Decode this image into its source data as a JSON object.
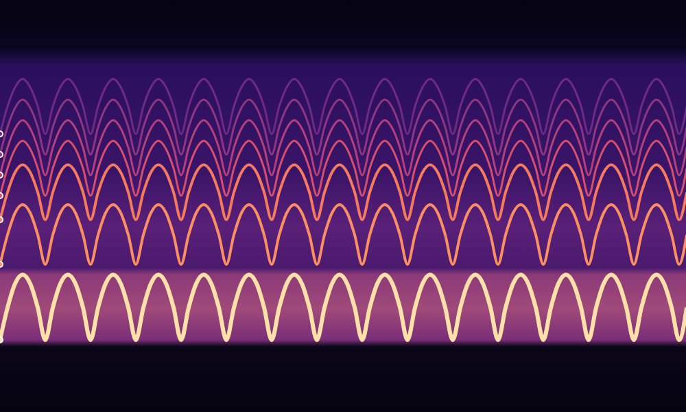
{
  "chart_data": {
    "type": "line",
    "grid": false,
    "tick_labels": false,
    "xlim": [
      0,
      1000
    ],
    "ylim": [
      0,
      600
    ],
    "x": [
      0,
      11,
      22,
      33,
      44,
      55,
      66,
      77,
      88,
      99,
      110,
      121,
      132,
      143,
      154,
      165,
      176,
      187,
      198,
      209,
      220,
      231,
      242,
      253,
      264,
      275,
      286,
      297,
      308,
      319,
      330,
      341,
      352,
      363,
      374,
      385,
      396,
      407,
      418,
      429,
      440,
      451,
      462,
      473,
      484,
      495,
      506,
      517,
      528,
      539,
      550,
      561,
      572,
      583,
      594,
      605,
      616,
      627,
      638,
      649,
      660,
      671,
      682,
      693,
      704,
      715,
      726,
      737,
      748,
      759,
      770,
      781,
      792,
      803,
      814,
      825,
      836,
      847,
      858,
      869,
      880,
      891,
      902,
      913,
      924,
      935,
      946,
      957,
      968,
      979,
      990,
      1001
    ],
    "series": [
      {
        "color": "#fee1a8",
        "values": [
          105,
          152,
          187,
          200,
          187,
          152,
          105,
          152,
          187,
          200,
          187,
          152,
          105,
          152,
          187,
          200,
          187,
          152,
          105,
          152,
          187,
          200,
          187,
          152,
          105,
          152,
          187,
          200,
          187,
          152,
          105,
          152,
          187,
          200,
          187,
          152,
          105,
          152,
          187,
          200,
          187,
          152,
          105,
          152,
          187,
          200,
          187,
          152,
          105,
          152,
          187,
          200,
          187,
          152,
          105,
          152,
          187,
          200,
          187,
          152,
          105,
          152,
          187,
          200,
          187,
          152,
          105,
          152,
          187,
          200,
          187,
          152,
          105,
          152,
          187,
          200,
          187,
          152,
          105,
          152,
          187,
          200,
          187,
          152,
          105,
          152,
          187,
          200,
          187,
          152,
          105,
          152
        ]
      },
      {
        "color": "#fb8f63",
        "values": [
          215,
          258,
          290,
          302,
          290,
          258,
          215,
          258,
          290,
          302,
          290,
          258,
          215,
          258,
          290,
          302,
          290,
          258,
          215,
          258,
          290,
          302,
          290,
          258,
          215,
          258,
          290,
          302,
          290,
          258,
          215,
          258,
          290,
          302,
          290,
          258,
          215,
          258,
          290,
          302,
          290,
          258,
          215,
          258,
          290,
          302,
          290,
          258,
          215,
          258,
          290,
          302,
          290,
          258,
          215,
          258,
          290,
          302,
          290,
          258,
          215,
          258,
          290,
          302,
          290,
          258,
          215,
          258,
          290,
          302,
          290,
          258,
          215,
          258,
          290,
          302,
          290,
          258,
          215,
          258,
          290,
          302,
          290,
          258,
          215,
          258,
          290,
          302,
          290,
          258,
          215,
          258
        ]
      },
      {
        "color": "#f57a5e",
        "values": [
          280,
          320,
          349,
          360,
          349,
          320,
          280,
          320,
          349,
          360,
          349,
          320,
          280,
          320,
          349,
          360,
          349,
          320,
          280,
          320,
          349,
          360,
          349,
          320,
          280,
          320,
          349,
          360,
          349,
          320,
          280,
          320,
          349,
          360,
          349,
          320,
          280,
          320,
          349,
          360,
          349,
          320,
          280,
          320,
          349,
          360,
          349,
          320,
          280,
          320,
          349,
          360,
          349,
          320,
          280,
          320,
          349,
          360,
          349,
          320,
          280,
          320,
          349,
          360,
          349,
          320,
          280,
          320,
          349,
          360,
          349,
          320,
          280,
          320,
          349,
          360,
          349,
          320,
          280,
          320,
          349,
          360,
          349,
          320,
          280,
          320,
          349,
          360,
          349,
          320,
          280,
          320
        ]
      },
      {
        "color": "#d54f6e",
        "values": [
          315,
          355,
          383,
          395,
          383,
          355,
          315,
          355,
          383,
          395,
          383,
          355,
          315,
          355,
          383,
          395,
          383,
          355,
          315,
          355,
          383,
          395,
          383,
          355,
          315,
          355,
          383,
          395,
          383,
          355,
          315,
          355,
          383,
          395,
          383,
          355,
          315,
          355,
          383,
          395,
          383,
          355,
          315,
          355,
          383,
          395,
          383,
          355,
          315,
          355,
          383,
          395,
          383,
          355,
          315,
          355,
          383,
          395,
          383,
          355,
          315,
          355,
          383,
          395,
          383,
          355,
          315,
          355,
          383,
          395,
          383,
          355,
          315,
          355,
          383,
          395,
          383,
          355,
          315,
          355,
          383,
          395,
          383,
          355,
          315,
          355,
          383,
          395,
          383,
          355,
          315,
          355
        ]
      },
      {
        "color": "#b2407c",
        "values": [
          345,
          385,
          413,
          425,
          413,
          385,
          345,
          385,
          413,
          425,
          413,
          385,
          345,
          385,
          413,
          425,
          413,
          385,
          345,
          385,
          413,
          425,
          413,
          385,
          345,
          385,
          413,
          425,
          413,
          385,
          345,
          385,
          413,
          425,
          413,
          385,
          345,
          385,
          413,
          425,
          413,
          385,
          345,
          385,
          413,
          425,
          413,
          385,
          345,
          385,
          413,
          425,
          413,
          385,
          345,
          385,
          413,
          425,
          413,
          385,
          345,
          385,
          413,
          425,
          413,
          385,
          345,
          385,
          413,
          425,
          413,
          385,
          345,
          385,
          413,
          425,
          413,
          385,
          345,
          385,
          413,
          425,
          413,
          385,
          345,
          385,
          413,
          425,
          413,
          385,
          345,
          385
        ]
      },
      {
        "color": "#8e3682",
        "values": [
          375,
          415,
          443,
          455,
          443,
          415,
          375,
          415,
          443,
          455,
          443,
          415,
          375,
          415,
          443,
          455,
          443,
          415,
          375,
          415,
          443,
          455,
          443,
          415,
          375,
          415,
          443,
          455,
          443,
          415,
          375,
          415,
          443,
          455,
          443,
          415,
          375,
          415,
          443,
          455,
          443,
          415,
          375,
          415,
          443,
          455,
          443,
          415,
          375,
          415,
          443,
          455,
          443,
          415,
          375,
          415,
          443,
          455,
          443,
          415,
          375,
          415,
          443,
          455,
          443,
          415,
          375,
          415,
          443,
          455,
          443,
          415,
          375,
          415,
          443,
          455,
          443,
          415,
          375,
          415,
          443,
          455,
          443,
          415,
          375,
          415,
          443,
          455,
          443,
          415,
          375,
          415
        ]
      },
      {
        "color": "#6f2b84",
        "values": [
          405,
          445,
          473,
          485,
          473,
          445,
          405,
          445,
          473,
          485,
          473,
          445,
          405,
          445,
          473,
          485,
          473,
          445,
          405,
          445,
          473,
          485,
          473,
          445,
          405,
          445,
          473,
          485,
          473,
          445,
          405,
          445,
          473,
          485,
          473,
          445,
          405,
          445,
          473,
          485,
          473,
          445,
          405,
          445,
          473,
          485,
          473,
          445,
          405,
          445,
          473,
          485,
          473,
          445,
          405,
          445,
          473,
          485,
          473,
          445,
          405,
          445,
          473,
          485,
          473,
          445,
          405,
          445,
          473,
          485,
          473,
          445,
          405,
          445,
          473,
          485,
          473,
          445,
          405,
          445,
          473,
          485,
          473,
          445,
          405,
          445,
          473,
          485,
          473,
          445,
          405,
          445
        ]
      }
    ]
  }
}
